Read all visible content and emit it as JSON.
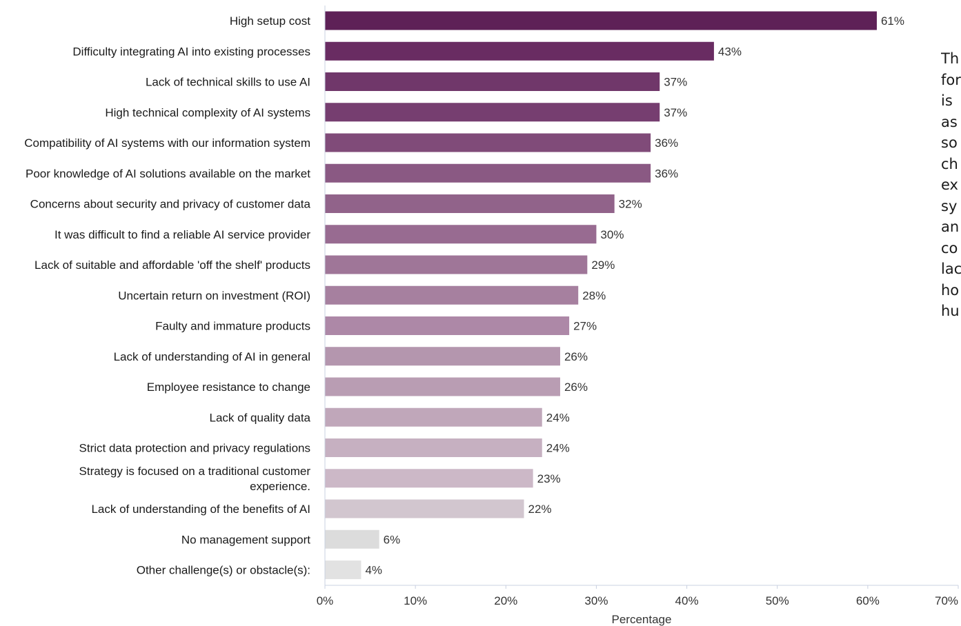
{
  "chart_data": {
    "type": "bar",
    "orientation": "horizontal",
    "categories": [
      "High setup cost",
      "Difficulty integrating AI into existing processes",
      "Lack of technical skills to use AI",
      "High technical complexity of AI systems",
      "Compatibility of AI systems with our information system",
      "Poor knowledge of AI solutions available on the market",
      "Concerns about security and privacy of customer data",
      "It was difficult to find a reliable AI service provider",
      "Lack of suitable and affordable 'off the shelf' products",
      "Uncertain return on investment (ROI)",
      "Faulty and immature products",
      "Lack of understanding of AI in general",
      "Employee resistance to change",
      "Lack of quality data",
      "Strict data protection and privacy regulations",
      "Strategy is focused on a traditional customer experience.",
      "Lack of understanding of the benefits of AI",
      "No management support",
      "Other challenge(s) or obstacle(s):"
    ],
    "values": [
      61,
      43,
      37,
      37,
      36,
      36,
      32,
      30,
      29,
      28,
      27,
      26,
      26,
      24,
      24,
      23,
      22,
      6,
      4
    ],
    "value_labels": [
      "61%",
      "43%",
      "37%",
      "37%",
      "36%",
      "36%",
      "32%",
      "30%",
      "29%",
      "28%",
      "27%",
      "26%",
      "26%",
      "24%",
      "24%",
      "23%",
      "22%",
      "6%",
      "4%"
    ],
    "xlabel": "Percentage",
    "ylabel": "",
    "xlim": [
      0,
      70
    ],
    "x_ticks": [
      "0%",
      "10%",
      "20%",
      "30%",
      "40%",
      "50%",
      "60%",
      "70%"
    ],
    "grid": false,
    "colors": [
      "#5e2157",
      "#692c62",
      "#70376a",
      "#763e70",
      "#804b79",
      "#8a5983",
      "#91638a",
      "#986b91",
      "#9f7698",
      "#a6809f",
      "#ad88a7",
      "#b496ae",
      "#b99db3",
      "#c0a7ba",
      "#c6b0c1",
      "#ccb8c7",
      "#d2c6cf",
      "#dcdcdc",
      "#e2e2e2"
    ]
  },
  "side_text": [
    "Th",
    "for",
    "is",
    "as",
    "so",
    "ch",
    "ex",
    "sy",
    "an",
    "co",
    "lac",
    "ho",
    "hu"
  ]
}
